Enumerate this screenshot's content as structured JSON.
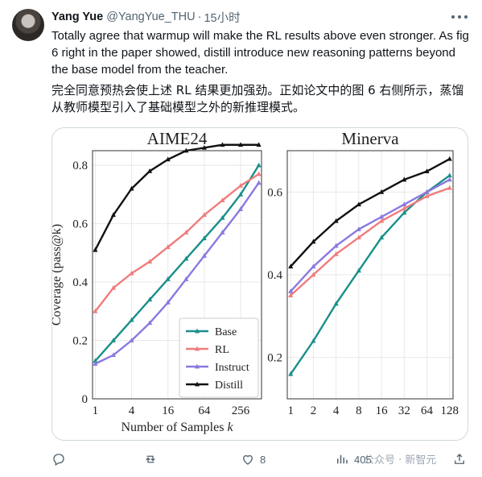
{
  "tweet": {
    "author_name": "Yang Yue",
    "author_handle": "@YangYue_THU",
    "separator": "·",
    "time": "15小时",
    "text_en": "Totally agree that warmup will make the RL results above even stronger. As fig 6 right in the paper showed, distill introduce new reasoning patterns beyond the base model from the teacher.",
    "text_cn": "完全同意预热会使上述 RL 结果更加强劲。正如论文中的图 6 右侧所示，蒸馏从教师模型引入了基础模型之外的新推理模式。"
  },
  "actions": {
    "reply_count": "",
    "retweet_count": "",
    "like_count": "8",
    "views_count": "405"
  },
  "watermark": "公众号 · 新智元",
  "icons": {
    "more": "more-horizontal-icon",
    "reply": "reply-icon",
    "retweet": "retweet-icon",
    "like": "heart-icon",
    "views": "views-icon",
    "share": "share-icon"
  },
  "colors": {
    "base": "#1a8f8a",
    "rl": "#f07c7c",
    "instruct": "#8a78e0",
    "distill": "#111111"
  },
  "chart_data": [
    {
      "type": "line",
      "title": "AIME24",
      "xlabel": "Number of Samples k",
      "ylabel": "Coverage (pass@k)",
      "x_scale": "log2",
      "x": [
        1,
        2,
        4,
        8,
        16,
        32,
        64,
        128,
        256,
        512
      ],
      "x_ticks": [
        "1",
        "4",
        "16",
        "64",
        "256"
      ],
      "y_ticks": [
        "0",
        "0.2",
        "0.4",
        "0.6",
        "0.8"
      ],
      "ylim": [
        0,
        0.85
      ],
      "legend_position": "bottom-right",
      "series": [
        {
          "name": "Base",
          "values": [
            0.13,
            0.2,
            0.27,
            0.34,
            0.41,
            0.48,
            0.55,
            0.62,
            0.7,
            0.8
          ]
        },
        {
          "name": "RL",
          "values": [
            0.3,
            0.38,
            0.43,
            0.47,
            0.52,
            0.57,
            0.63,
            0.68,
            0.73,
            0.77
          ]
        },
        {
          "name": "Instruct",
          "values": [
            0.12,
            0.15,
            0.2,
            0.26,
            0.33,
            0.41,
            0.49,
            0.57,
            0.65,
            0.74
          ]
        },
        {
          "name": "Distill",
          "values": [
            0.51,
            0.63,
            0.72,
            0.78,
            0.82,
            0.85,
            0.86,
            0.87,
            0.87,
            0.87
          ]
        }
      ]
    },
    {
      "type": "line",
      "title": "Minerva",
      "xlabel": "",
      "ylabel": "",
      "x_scale": "log2",
      "x": [
        1,
        2,
        4,
        8,
        16,
        32,
        64,
        128
      ],
      "x_ticks": [
        "1",
        "2",
        "4",
        "8",
        "16",
        "32",
        "64",
        "128"
      ],
      "y_ticks": [
        "0.2",
        "0.4",
        "0.6"
      ],
      "ylim": [
        0.1,
        0.7
      ],
      "series": [
        {
          "name": "Base",
          "values": [
            0.16,
            0.24,
            0.33,
            0.41,
            0.49,
            0.55,
            0.6,
            0.64
          ]
        },
        {
          "name": "RL",
          "values": [
            0.35,
            0.4,
            0.45,
            0.49,
            0.53,
            0.56,
            0.59,
            0.61
          ]
        },
        {
          "name": "Instruct",
          "values": [
            0.36,
            0.42,
            0.47,
            0.51,
            0.54,
            0.57,
            0.6,
            0.63
          ]
        },
        {
          "name": "Distill",
          "values": [
            0.42,
            0.48,
            0.53,
            0.57,
            0.6,
            0.63,
            0.65,
            0.68
          ]
        }
      ]
    }
  ]
}
